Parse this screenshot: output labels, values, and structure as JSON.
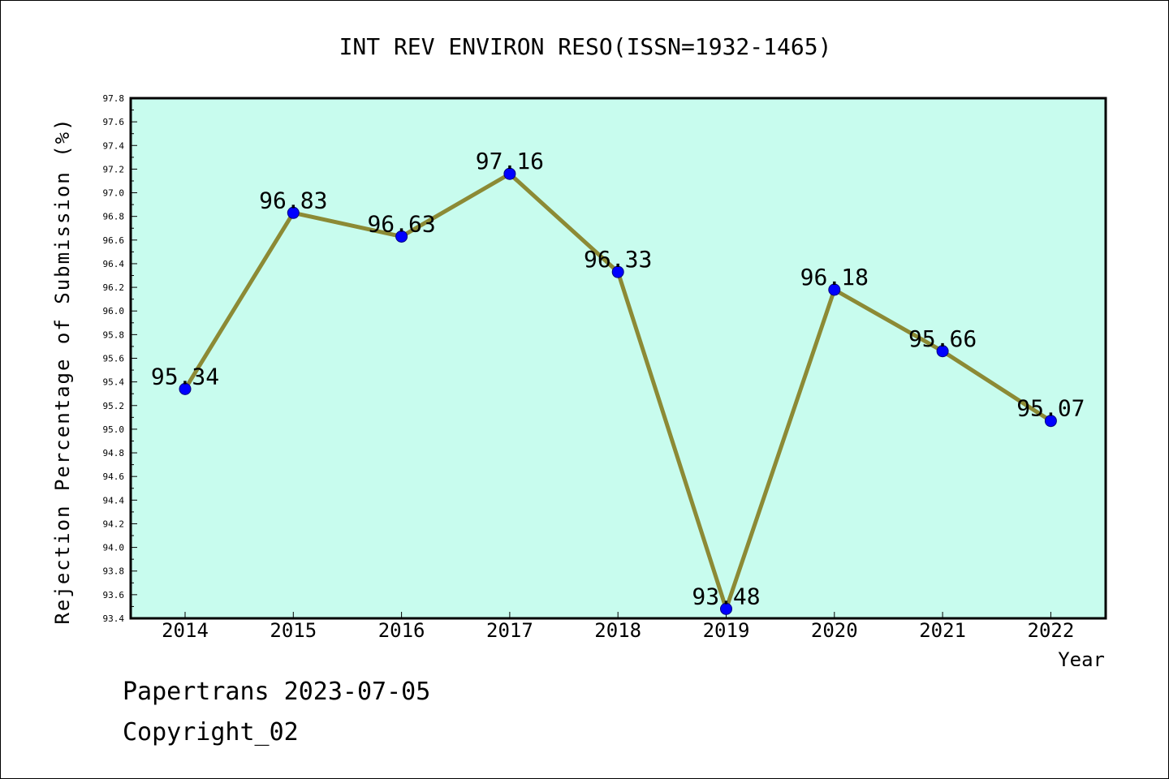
{
  "chart_data": {
    "type": "line",
    "title": "INT REV ENVIRON RESO(ISSN=1932-1465)",
    "xlabel": "Year",
    "ylabel": "Rejection Percentage of Submission (%)",
    "categories": [
      "2014",
      "2015",
      "2016",
      "2017",
      "2018",
      "2019",
      "2020",
      "2021",
      "2022"
    ],
    "series": [
      {
        "values": [
          95.34,
          96.83,
          96.63,
          97.16,
          96.33,
          93.48,
          96.18,
          95.66,
          95.07
        ],
        "labels": [
          "95.34",
          "96.83",
          "96.63",
          "97.16",
          "96.33",
          "93.48",
          "96.18",
          "95.66",
          "95.07"
        ]
      }
    ],
    "ylim": [
      93.4,
      97.8
    ],
    "yticks": [
      "93.4",
      "93.6",
      "93.8",
      "94.0",
      "94.2",
      "94.4",
      "94.6",
      "94.8",
      "95.0",
      "95.2",
      "95.4",
      "95.6",
      "95.8",
      "96.0",
      "96.2",
      "96.4",
      "96.6",
      "96.8",
      "97.0",
      "97.2",
      "97.4",
      "97.6",
      "97.8"
    ],
    "grid": false,
    "colors": {
      "plot_background": "#c8fcee",
      "line": "#8c8a35",
      "marker": "#0000ff"
    }
  },
  "footer": {
    "source": "Papertrans 2023-07-05",
    "copyright": "Copyright_02"
  }
}
